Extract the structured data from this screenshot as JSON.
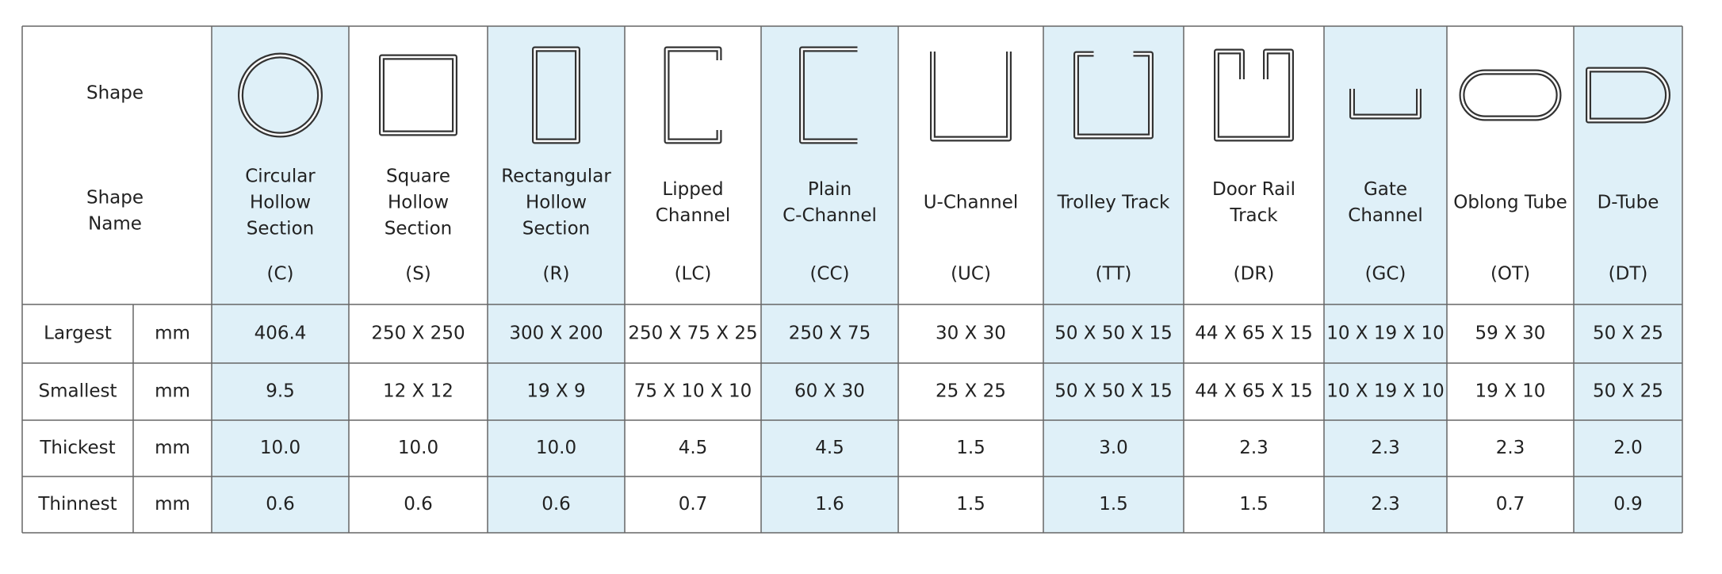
{
  "header": {
    "shape_label": "Shape",
    "name_label_lines": [
      "Shape",
      "Name"
    ]
  },
  "columns": [
    {
      "name_lines": [
        "Circular",
        "Hollow",
        "Section"
      ],
      "code": "(C)"
    },
    {
      "name_lines": [
        "Square",
        "Hollow",
        "Section"
      ],
      "code": "(S)"
    },
    {
      "name_lines": [
        "Rectangular",
        "Hollow",
        "Section"
      ],
      "code": "(R)"
    },
    {
      "name_lines": [
        "Lipped",
        "Channel"
      ],
      "code": "(LC)"
    },
    {
      "name_lines": [
        "Plain",
        "C-Channel"
      ],
      "code": "(CC)"
    },
    {
      "name_lines": [
        "U-Channel"
      ],
      "code": "(UC)"
    },
    {
      "name_lines": [
        "Trolley Track"
      ],
      "code": "(TT)"
    },
    {
      "name_lines": [
        "Door Rail",
        "Track"
      ],
      "code": "(DR)"
    },
    {
      "name_lines": [
        "Gate",
        "Channel"
      ],
      "code": "(GC)"
    },
    {
      "name_lines": [
        "Oblong Tube"
      ],
      "code": "(OT)"
    },
    {
      "name_lines": [
        "D-Tube"
      ],
      "code": "(DT)"
    }
  ],
  "rows": [
    {
      "label": "Largest",
      "unit": "mm",
      "values": [
        "406.4",
        "250 X 250",
        "300 X 200",
        "250 X 75 X 25",
        "250 X 75",
        "30 X 30",
        "50 X 50 X 15",
        "44 X 65 X 15",
        "10 X 19 X 10",
        "59 X 30",
        "50 X 25"
      ]
    },
    {
      "label": "Smallest",
      "unit": "mm",
      "values": [
        "9.5",
        "12 X 12",
        "19 X 9",
        "75 X 10 X 10",
        "60 X 30",
        "25 X 25",
        "50 X 50 X 15",
        "44 X 65 X 15",
        "10 X 19 X 10",
        "19 X 10",
        "50 X 25"
      ]
    },
    {
      "label": "Thickest",
      "unit": "mm",
      "values": [
        "10.0",
        "10.0",
        "10.0",
        "4.5",
        "4.5",
        "1.5",
        "3.0",
        "2.3",
        "2.3",
        "2.3",
        "2.0"
      ]
    },
    {
      "label": "Thinnest",
      "unit": "mm",
      "values": [
        "0.6",
        "0.6",
        "0.6",
        "0.7",
        "1.6",
        "1.5",
        "1.5",
        "1.5",
        "2.3",
        "0.7",
        "0.9"
      ]
    }
  ]
}
